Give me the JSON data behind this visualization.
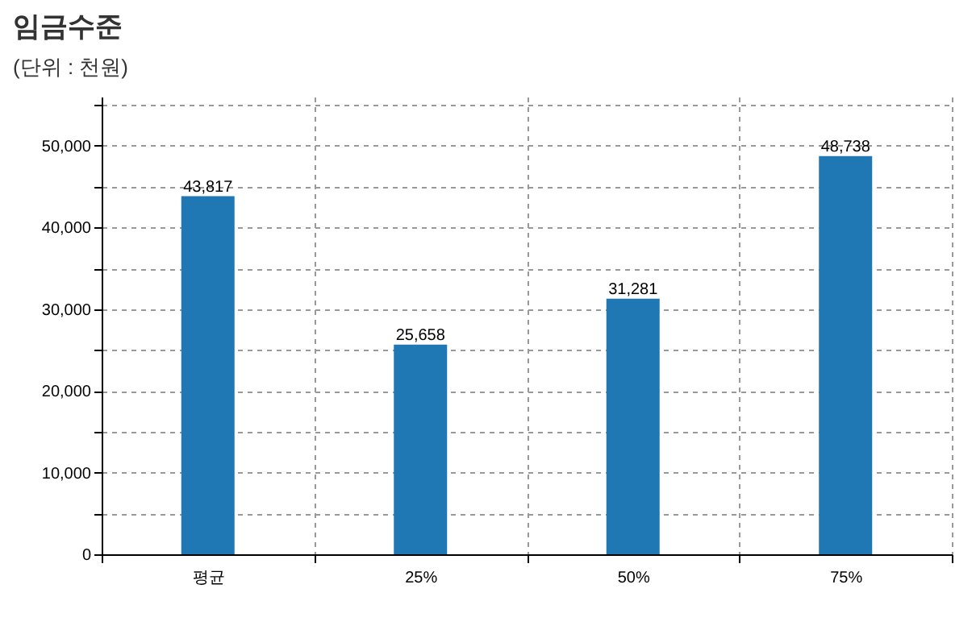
{
  "chart_data": {
    "type": "bar",
    "title": "임금수준",
    "subtitle": "(단위 : 천원)",
    "categories": [
      "평균",
      "25%",
      "50%",
      "75%"
    ],
    "values": [
      43817,
      25658,
      31281,
      48738
    ],
    "color": "#1f77b4",
    "value_labels": [
      "43,817",
      "25,658",
      "31,281",
      "48,738"
    ],
    "ylim": [
      0,
      56000
    ],
    "yticks": [
      0,
      {
        "value": 5000,
        "label": null
      },
      {
        "value": 10000,
        "label": "10,000"
      },
      {
        "value": 15000,
        "label": null
      },
      {
        "value": 20000,
        "label": "20,000"
      },
      {
        "value": 25000,
        "label": null
      },
      {
        "value": 30000,
        "label": "30,000"
      },
      {
        "value": 35000,
        "label": null
      },
      {
        "value": 40000,
        "label": "40,000"
      },
      {
        "value": 45000,
        "label": null
      },
      {
        "value": 50000,
        "label": "50,000"
      },
      {
        "value": 55000,
        "label": null
      }
    ],
    "grid": true
  }
}
